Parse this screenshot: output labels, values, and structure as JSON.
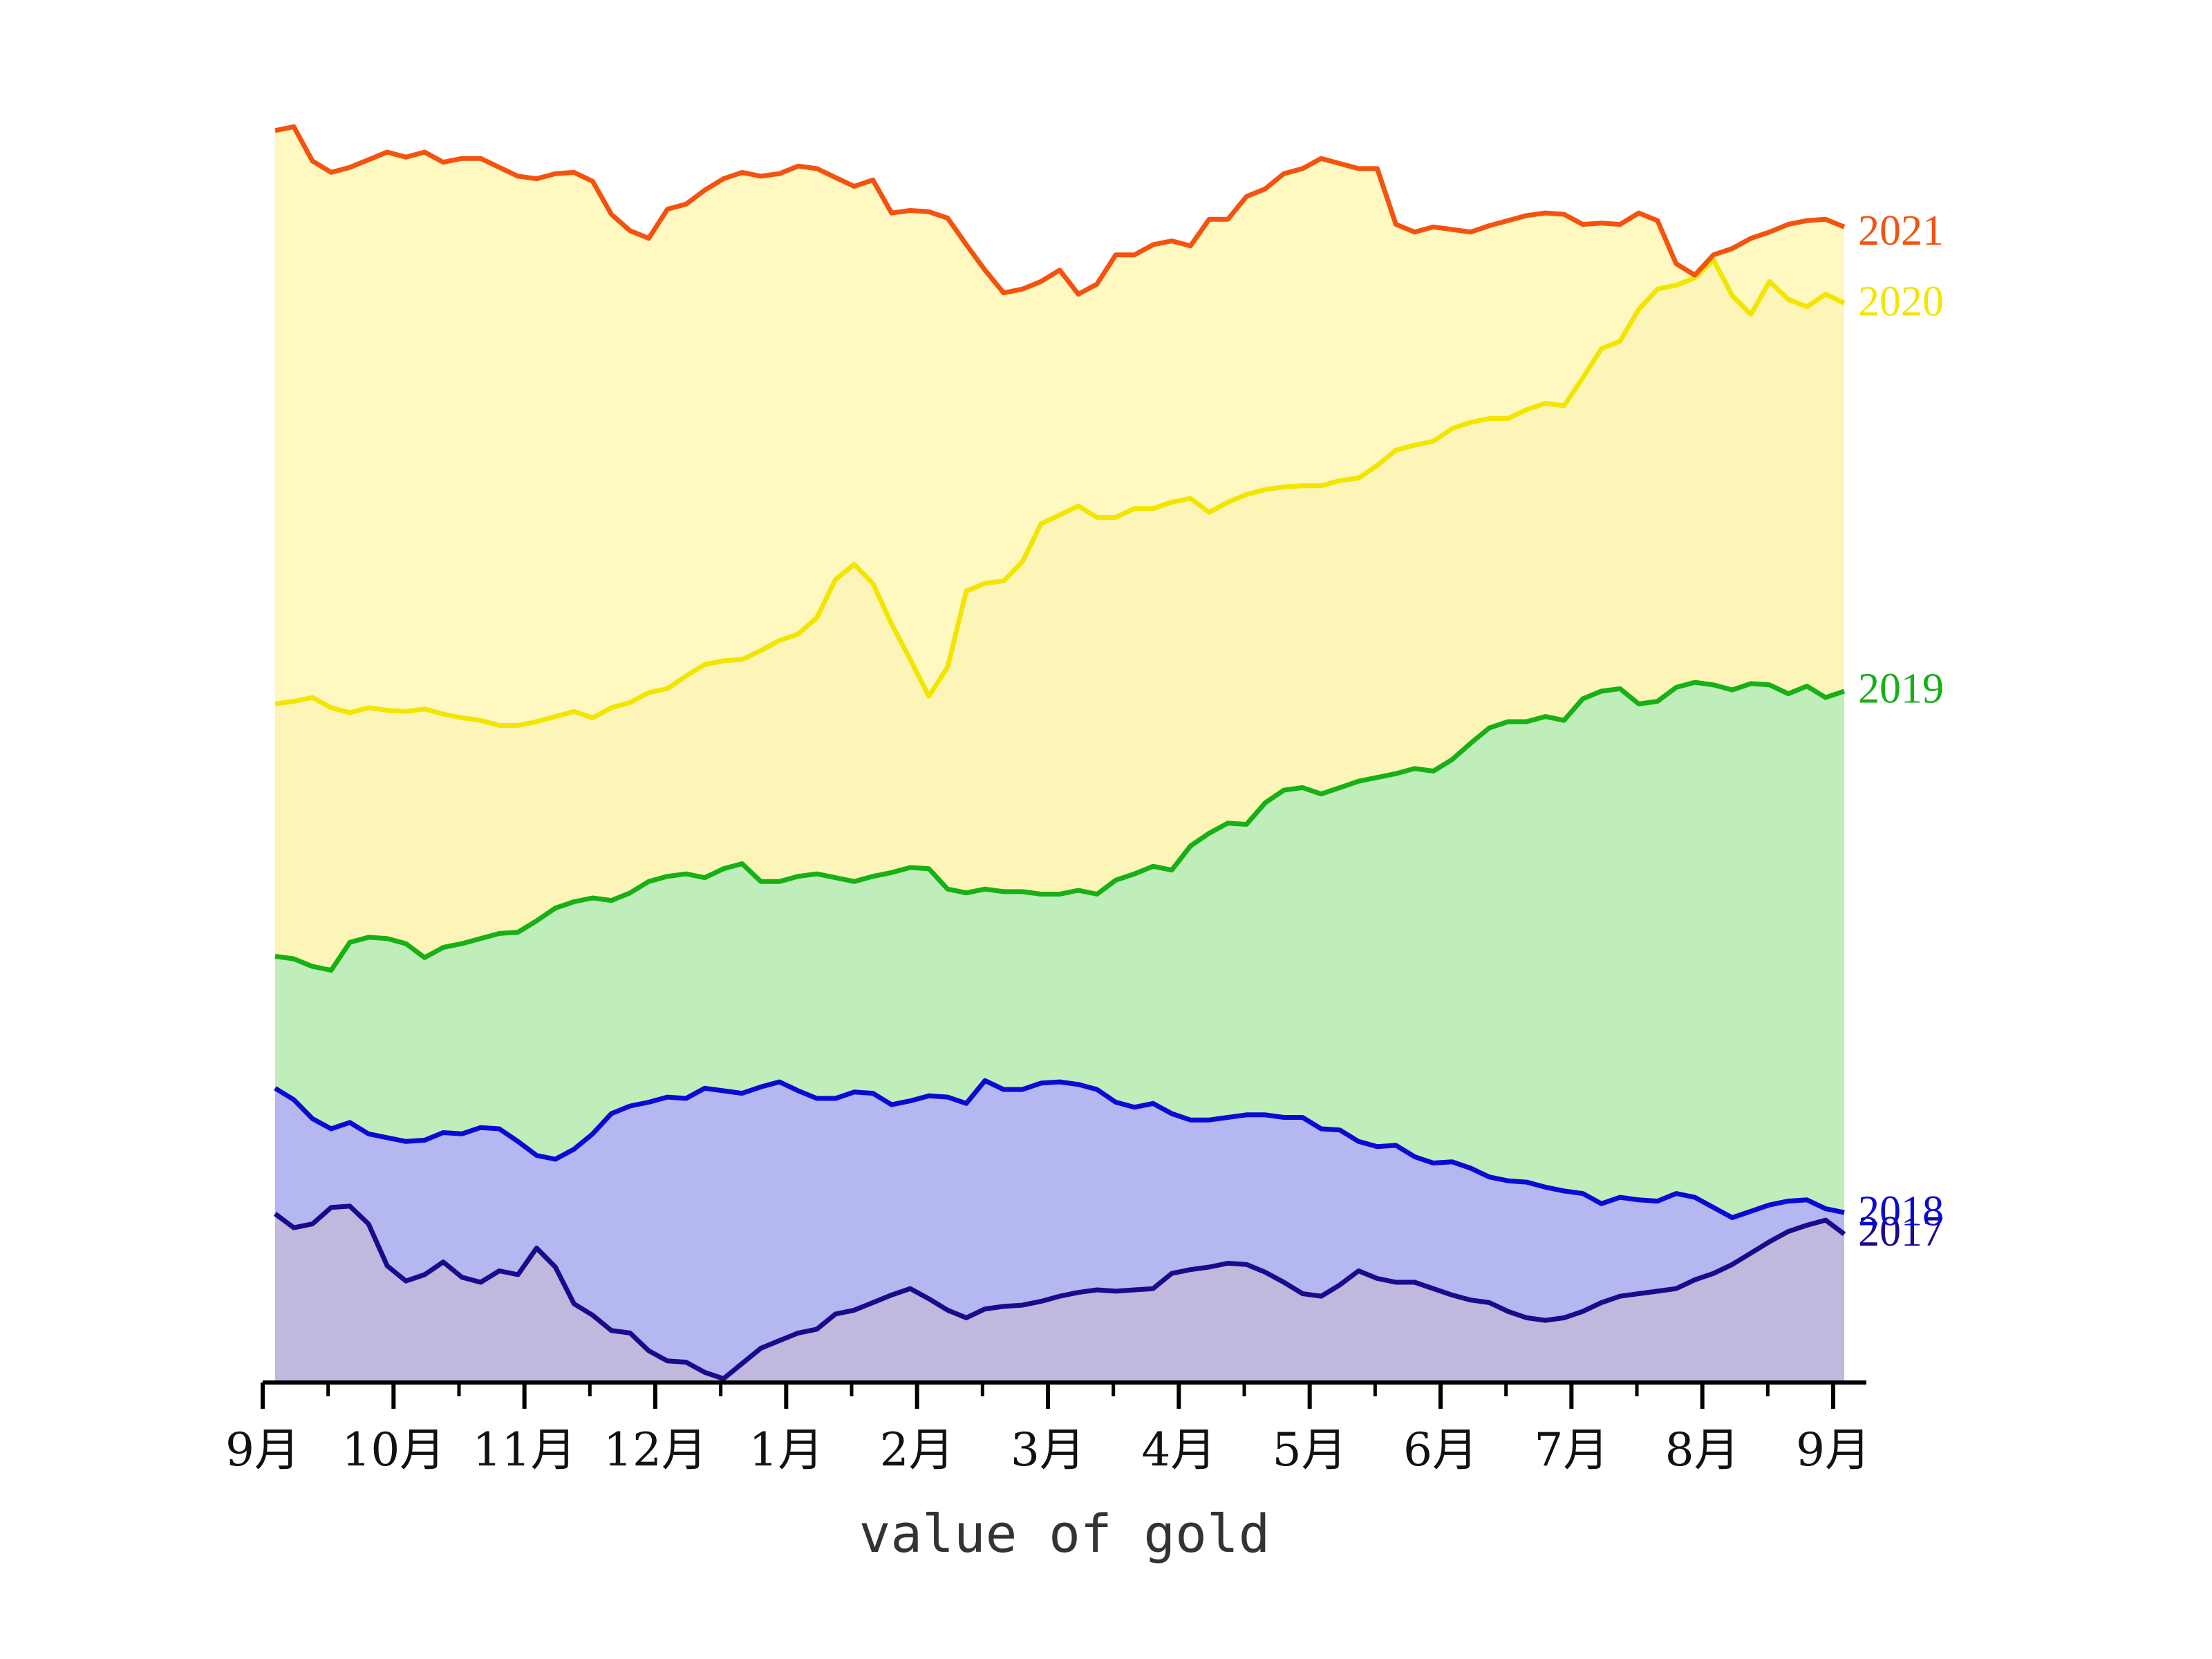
{
  "chart_data": {
    "type": "area",
    "title": "",
    "xlabel": "value of gold",
    "ylabel": "",
    "x_ticks": [
      "9月",
      "10月",
      "11月",
      "12月",
      "1月",
      "2月",
      "3月",
      "4月",
      "5月",
      "6月",
      "7月",
      "8月",
      "9月"
    ],
    "grid": false,
    "legend": "inline-right",
    "y_note": "relative stacked level, 0 = chart bottom, 100 = chart top",
    "series": [
      {
        "name": "2017",
        "color": "#1a0a8c",
        "fill": "#c0b8dd",
        "values": [
          13.3,
          12.2,
          12.5,
          13.8,
          13.9,
          12.5,
          9.2,
          8.0,
          8.5,
          9.5,
          8.3,
          7.9,
          8.8,
          8.5,
          10.6,
          9.1,
          6.2,
          5.3,
          4.1,
          3.9,
          2.5,
          1.7,
          1.6,
          0.8,
          0.3,
          1.5,
          2.7,
          3.3,
          3.9,
          4.2,
          5.4,
          5.7,
          6.3,
          6.9,
          7.4,
          6.6,
          5.7,
          5.1,
          5.8,
          6.0,
          6.1,
          6.4,
          6.8,
          7.1,
          7.3,
          7.2,
          7.3,
          7.4,
          8.6,
          8.9,
          9.1,
          9.4,
          9.3,
          8.7,
          7.9,
          7.0,
          6.8,
          7.7,
          8.8,
          8.2,
          7.9,
          7.9,
          7.4,
          6.9,
          6.5,
          6.3,
          5.6,
          5.1,
          4.9,
          5.1,
          5.6,
          6.3,
          6.8,
          7.0,
          7.2,
          7.4,
          8.1,
          8.6,
          9.3,
          10.2,
          11.1,
          11.9,
          12.4,
          12.8,
          11.7
        ],
        "label_value": 12.0
      },
      {
        "name": "2018",
        "color": "#0a0ad4",
        "fill": "#b4b7f0",
        "values": [
          23.2,
          22.3,
          20.8,
          20.0,
          20.5,
          19.6,
          19.3,
          19.0,
          19.1,
          19.7,
          19.6,
          20.1,
          20.0,
          19.0,
          17.9,
          17.6,
          18.4,
          19.6,
          21.2,
          21.8,
          22.1,
          22.5,
          22.4,
          23.2,
          23.0,
          22.8,
          23.3,
          23.7,
          23.0,
          22.4,
          22.4,
          22.9,
          22.8,
          21.9,
          22.2,
          22.6,
          22.5,
          22.0,
          23.8,
          23.1,
          23.1,
          23.6,
          23.7,
          23.5,
          23.1,
          22.1,
          21.7,
          22.0,
          21.2,
          20.7,
          20.7,
          20.9,
          21.1,
          21.1,
          20.9,
          20.9,
          20.0,
          19.9,
          19.0,
          18.6,
          18.7,
          17.8,
          17.3,
          17.4,
          16.9,
          16.2,
          15.9,
          15.8,
          15.4,
          15.1,
          14.9,
          14.1,
          14.6,
          14.4,
          14.3,
          14.9,
          14.6,
          13.8,
          13.0,
          13.5,
          14.0,
          14.3,
          14.4,
          13.7,
          13.4
        ],
        "label_value": 13.6
      },
      {
        "name": "2019",
        "color": "#17b015",
        "fill": "#bfeebb",
        "values": [
          33.6,
          33.4,
          32.8,
          32.5,
          34.7,
          35.1,
          35.0,
          34.6,
          33.5,
          34.3,
          34.6,
          35.0,
          35.4,
          35.5,
          36.4,
          37.4,
          37.9,
          38.2,
          38.0,
          38.6,
          39.5,
          39.9,
          40.1,
          39.8,
          40.5,
          40.9,
          39.5,
          39.5,
          39.9,
          40.1,
          39.8,
          39.5,
          39.9,
          40.2,
          40.6,
          40.5,
          38.9,
          38.6,
          38.9,
          38.7,
          38.7,
          38.5,
          38.5,
          38.8,
          38.5,
          39.6,
          40.1,
          40.7,
          40.4,
          42.3,
          43.3,
          44.1,
          44.0,
          45.7,
          46.7,
          46.9,
          46.4,
          46.9,
          47.4,
          47.7,
          48.0,
          48.4,
          48.2,
          49.1,
          50.4,
          51.6,
          52.1,
          52.1,
          52.5,
          52.2,
          53.9,
          54.5,
          54.7,
          53.5,
          53.7,
          54.8,
          55.2,
          55.0,
          54.6,
          55.1,
          55.0,
          54.3,
          54.9,
          54.0,
          54.5
        ],
        "label_value": 54.8
      },
      {
        "name": "2020",
        "color": "#f2e600",
        "fill": "#fdf5b8",
        "values": [
          53.5,
          53.7,
          54.0,
          53.2,
          52.8,
          53.2,
          53.0,
          52.9,
          53.1,
          52.7,
          52.4,
          52.2,
          51.8,
          51.8,
          52.1,
          52.5,
          52.9,
          52.4,
          53.2,
          53.6,
          54.4,
          54.7,
          55.7,
          56.6,
          56.9,
          57.0,
          57.7,
          58.5,
          59.0,
          60.3,
          63.3,
          64.5,
          63.0,
          59.8,
          57.0,
          54.1,
          56.4,
          62.4,
          63.0,
          63.2,
          64.7,
          67.7,
          68.4,
          69.1,
          68.2,
          68.2,
          68.9,
          68.9,
          69.4,
          69.7,
          68.6,
          69.4,
          70.0,
          70.4,
          70.6,
          70.7,
          70.7,
          71.1,
          71.3,
          72.3,
          73.5,
          73.9,
          74.2,
          75.2,
          75.7,
          76.0,
          76.0,
          76.7,
          77.2,
          77.0,
          79.2,
          81.5,
          82.1,
          84.6,
          86.2,
          86.5,
          87.1,
          88.5,
          85.7,
          84.2,
          86.8,
          85.4,
          84.8,
          85.8,
          85.1
        ],
        "label_value": 85.3
      },
      {
        "name": "2021",
        "color": "#f4530f",
        "fill": "#fff8c0",
        "values": [
          98.7,
          99.0,
          96.3,
          95.4,
          95.8,
          96.4,
          97.0,
          96.6,
          97.0,
          96.2,
          96.5,
          96.5,
          95.8,
          95.1,
          94.9,
          95.3,
          95.4,
          94.7,
          92.1,
          90.8,
          90.2,
          92.5,
          92.9,
          94.0,
          94.9,
          95.4,
          95.1,
          95.3,
          95.9,
          95.7,
          95.0,
          94.3,
          94.8,
          92.2,
          92.4,
          92.3,
          91.8,
          89.7,
          87.7,
          85.9,
          86.2,
          86.8,
          87.7,
          85.8,
          86.6,
          88.9,
          88.9,
          89.7,
          90.0,
          89.6,
          91.7,
          91.7,
          93.5,
          94.1,
          95.3,
          95.7,
          96.5,
          96.1,
          95.7,
          95.7,
          91.3,
          90.7,
          91.1,
          90.9,
          90.7,
          91.2,
          91.6,
          92.0,
          92.2,
          92.1,
          91.3,
          91.4,
          91.3,
          92.2,
          91.6,
          88.2,
          87.3,
          88.9,
          89.4,
          90.2,
          90.7,
          91.3,
          91.6,
          91.7,
          91.1
        ],
        "label_value": 90.9
      }
    ]
  }
}
